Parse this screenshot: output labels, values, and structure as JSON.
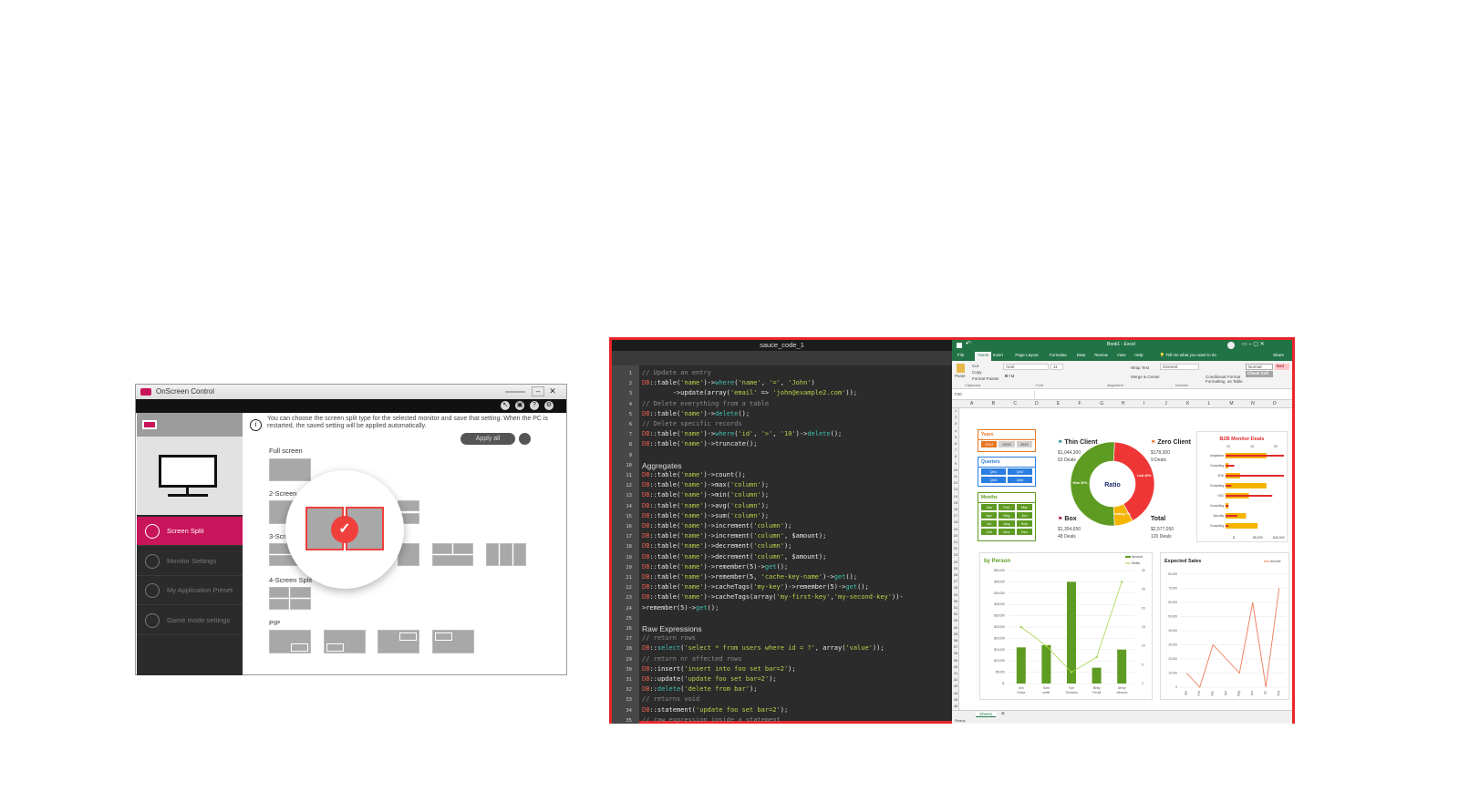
{
  "osc": {
    "title": "OnScreen Control",
    "toolbar_icons": [
      "cursor-icon",
      "display-icon",
      "help-icon",
      "settings-icon"
    ],
    "toolbar_glyphs": [
      "↖",
      "▣",
      "?",
      "⚙"
    ],
    "info": "You can choose the screen split type for the selected monitor and save that setting. When the PC is restarted, the saved setting will be applied automatically.",
    "apply_all": "Apply all",
    "sidebar": [
      {
        "label": "Screen Split",
        "active": true
      },
      {
        "label": "Monitor Settings"
      },
      {
        "label": "My Application Preset"
      },
      {
        "label": "Game mode settings"
      }
    ],
    "sections": {
      "full": "Full screen",
      "two": "2-Screen Split",
      "three": "3-Screen Split",
      "four": "4-Screen Split",
      "pip": "PIP"
    },
    "accent": "#c8145a",
    "selected_color": "#f0403c"
  },
  "code": {
    "title": "sauce_code_1",
    "lines": [
      "// Update an entry",
      "DB::table('name')->where('name', '=', 'John')",
      "        ->update(array('email' => 'john@example2.com'));",
      "// Delete everything from a table",
      "DB::table('name')->delete();",
      "// Delete specific records",
      "DB::table('name')->where('id', '>', '10')->delete();",
      "DB::table('name')->truncate();",
      "",
      "#Aggregates",
      "DB::table('name')->count();",
      "DB::table('name')->max('column');",
      "DB::table('name')->min('column');",
      "DB::table('name')->avg('column');",
      "DB::table('name')->sum('column');",
      "DB::table('name')->increment('column');",
      "DB::table('name')->increment('column', $amount);",
      "DB::table('name')->decrement('column');",
      "DB::table('name')->decrement('column', $amount);",
      "DB::table('name')->remember(5)->get();",
      "DB::table('name')->remember(5, 'cache-key-name')->get();",
      "DB::table('name')->cacheTags('my-key')->remember(5)->get();",
      "DB::table('name')->cacheTags(array('my-first-key','my-second-key'))-",
      ">remember(5)->get();",
      "",
      "#Raw Expressions",
      "// return rows",
      "DB::select('select * from users where id = ?', array('value'));",
      "// return nr affected rows",
      "DB::insert('insert into foo set bar=2');",
      "DB::update('update foo set bar=2');",
      "DB::delete('delete from bar');",
      "// returns void",
      "DB::statement('update foo set bar=2');",
      "// raw expression inside a statement"
    ]
  },
  "excel": {
    "title": "Book1 - Excel",
    "menu": [
      "File",
      "Home",
      "Insert",
      "Page Layout",
      "Formulas",
      "Data",
      "Review",
      "View",
      "Help"
    ],
    "tell_me": "Tell me what you want to do",
    "share": "Share",
    "ribbon": {
      "paste": "Paste",
      "cut": "Cut",
      "copy": "Copy",
      "format_painter": "Format Painter",
      "font": "Arial",
      "size": "11",
      "wrap": "Wrap Text",
      "merge": "Merge & Center",
      "number_format": "General",
      "cond": "Conditional Formatting",
      "fmt_table": "Format as Table",
      "style_normal": "Normal",
      "style_bad": "Bad",
      "style_check": "Check Cell",
      "groups": [
        "Clipboard",
        "Font",
        "Alignment",
        "Number"
      ]
    },
    "name_box": "F20",
    "columns": [
      "A",
      "B",
      "C",
      "D",
      "E",
      "F",
      "G",
      "H",
      "I",
      "J",
      "K",
      "L",
      "M",
      "N",
      "O"
    ],
    "sheet_tab": "Sheet1",
    "status": "Ready",
    "slicers": {
      "years": {
        "title": "Years",
        "items": [
          "2014",
          "2013",
          "2012"
        ],
        "color": "#e87722"
      },
      "quarters": {
        "title": "Quarters",
        "items": [
          "Qtr1",
          "Qtr2",
          "Qtr3",
          "Qtr4"
        ],
        "color": "#2a7de1"
      },
      "months": {
        "title": "Months",
        "items": [
          "Jan",
          "Feb",
          "Mar",
          "Apr",
          "May",
          "Jun",
          "Jul",
          "Aug",
          "Sep",
          "Oct",
          "Nov",
          "Dec"
        ],
        "color": "#5e9b22"
      }
    },
    "kpis": [
      {
        "name": "Thin Client",
        "value": "$1,044,300",
        "deals": "63 Deals",
        "flag": "#2a8a9a"
      },
      {
        "name": "Zero Client",
        "value": "$178,300",
        "deals": "9 Deals",
        "flag": "#e87722"
      },
      {
        "name": "Box",
        "value": "$1,354,650",
        "deals": "48 Deals",
        "flag": "#a01040"
      },
      {
        "name": "Total",
        "value": "$2,577,050",
        "deals": "120 Deals",
        "flag": ""
      }
    ]
  },
  "chart_data": [
    {
      "type": "pie",
      "title": "Ratio",
      "donut": true,
      "slices": [
        {
          "label": "Won",
          "value": 50,
          "text": "Won 50%",
          "color": "#5e9b22"
        },
        {
          "label": "Lost",
          "value": 40,
          "text": "Lost 40%",
          "color": "#ef3636"
        },
        {
          "label": "Pending",
          "value": 7,
          "text": "Pending 7%",
          "color": "#f4b400"
        }
      ]
    },
    {
      "type": "bar",
      "title": "B2B Monitor Deals",
      "orientation": "horizontal",
      "categories": [
        "Ampliance",
        "Consulting",
        "VDD",
        "Consulting",
        "VSO",
        "Consulting",
        "Security",
        "Consulting"
      ],
      "series": [
        {
          "values": [
            14,
            1,
            5,
            14,
            8,
            1,
            7,
            11
          ],
          "color": "#f4b400"
        },
        {
          "values": [
            20,
            3,
            20,
            2,
            16,
            1,
            4,
            1
          ],
          "color": "#e02a2a"
        }
      ],
      "top_ticks": [
        "10",
        "15",
        "20"
      ],
      "bottom_ticks": [
        "$-",
        "$5,000",
        "$40,000"
      ],
      "xlim": [
        0,
        20
      ]
    },
    {
      "type": "bar",
      "title": "by Person",
      "categories": [
        "Kim Grace",
        "Sam smith",
        "Tom Thomson",
        "Betty Freudi",
        "Jenny Johnson"
      ],
      "series": [
        {
          "name": "Amount",
          "type": "bar",
          "values": [
            16000,
            17000,
            45000,
            7000,
            15000
          ],
          "color": "#5e9b22"
        },
        {
          "name": "Deals",
          "type": "line",
          "axis": "right",
          "values": [
            15,
            10,
            3,
            7,
            27
          ],
          "color": "#a6d84a"
        }
      ],
      "ylim": [
        0,
        50000
      ],
      "yticks": [
        "$-",
        "$5,000",
        "$10,000",
        "$15,000",
        "$20,000",
        "$25,000",
        "$30,000",
        "$35,000",
        "$40,000",
        "$45,000",
        "$50,000"
      ],
      "y2lim": [
        0,
        30
      ],
      "y2ticks": [
        "0",
        "5",
        "10",
        "15",
        "20",
        "25",
        "30"
      ],
      "legend": "top-right"
    },
    {
      "type": "line",
      "title": "Expected Sales",
      "categories": [
        "Jan",
        "Feb",
        "Mar",
        "Apr",
        "May",
        "Jun",
        "Jul",
        "Aug"
      ],
      "series": [
        {
          "name": "Amount",
          "values": [
            10000,
            0,
            30000,
            20000,
            10000,
            60000,
            0,
            70000
          ],
          "color": "#ee7b5a"
        }
      ],
      "ylim": [
        0,
        80000
      ],
      "yticks": [
        "0",
        "10,000",
        "20,000",
        "30,000",
        "40,000",
        "50,000",
        "60,000",
        "70,000",
        "80,000"
      ],
      "legend": "top-right"
    }
  ]
}
